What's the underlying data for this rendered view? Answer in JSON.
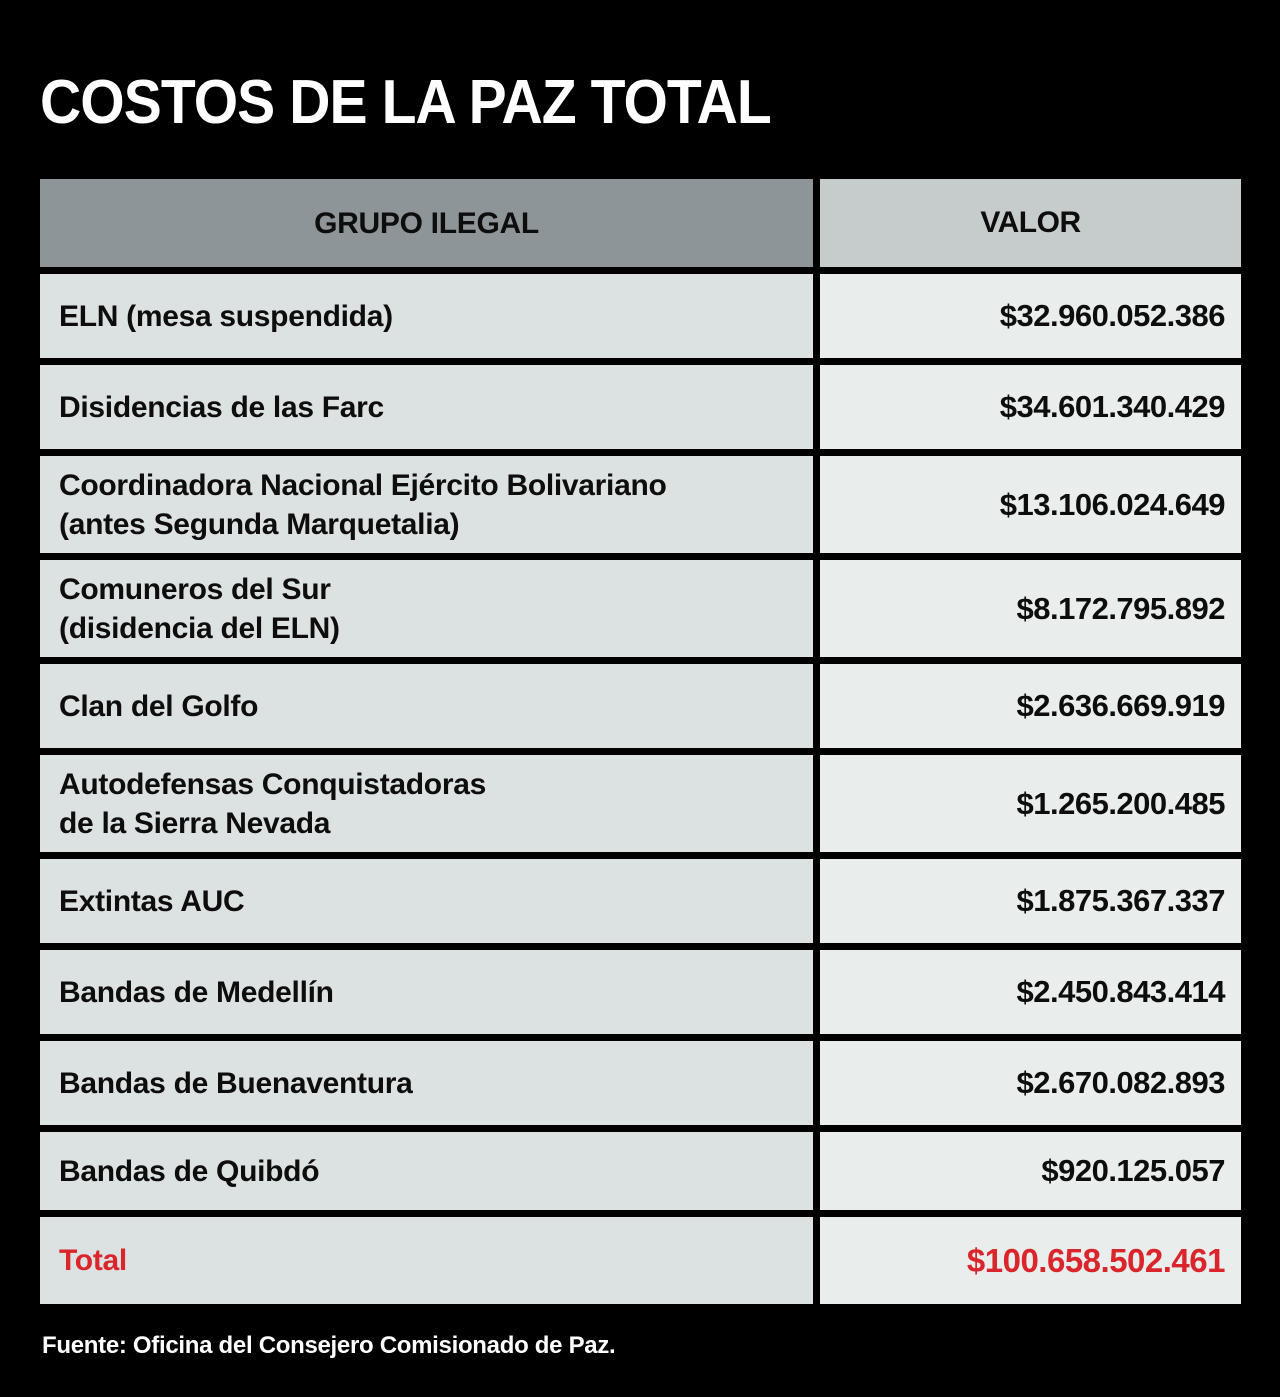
{
  "title": "COSTOS DE LA PAZ TOTAL",
  "table": {
    "headers": {
      "group": "GRUPO ILEGAL",
      "value": "VALOR"
    },
    "rows": [
      {
        "group": "ELN (mesa suspendida)",
        "value": "$32.960.052.386"
      },
      {
        "group": "Disidencias de las Farc",
        "value": "$34.601.340.429"
      },
      {
        "group": "Coordinadora Nacional Ejército Bolivariano\n(antes Segunda Marquetalia)",
        "value": "$13.106.024.649"
      },
      {
        "group": "Comuneros del Sur\n(disidencia del ELN)",
        "value": "$8.172.795.892"
      },
      {
        "group": "Clan del Golfo",
        "value": "$2.636.669.919"
      },
      {
        "group": "Autodefensas Conquistadoras\nde la Sierra Nevada",
        "value": "$1.265.200.485"
      },
      {
        "group": "Extintas AUC",
        "value": "$1.875.367.337"
      },
      {
        "group": "Bandas de Medellín",
        "value": "$2.450.843.414"
      },
      {
        "group": "Bandas de Buenaventura",
        "value": "$2.670.082.893"
      },
      {
        "group": "Bandas de Quibdó",
        "value": "$920.125.057"
      }
    ],
    "total_row": {
      "group": "Total",
      "value": "$100.658.502.461"
    }
  },
  "footer": {
    "source": "Fuente: Oficina del Consejero Comisionado de Paz."
  },
  "colors": {
    "background": "#000000",
    "title_text": "#ffffff",
    "header_group_bg": "#8d9599",
    "header_value_bg": "#c6cbcc",
    "row_group_bg": "#dce1e1",
    "row_value_bg": "#e9edec",
    "cell_text": "#0d0d0d",
    "total_accent": "#d9252b"
  },
  "chart_data": {
    "type": "table",
    "title": "COSTOS DE LA PAZ TOTAL",
    "columns": [
      "GRUPO ILEGAL",
      "VALOR"
    ],
    "categories": [
      "ELN (mesa suspendida)",
      "Disidencias de las Farc",
      "Coordinadora Nacional Ejército Bolivariano (antes Segunda Marquetalia)",
      "Comuneros del Sur (disidencia del ELN)",
      "Clan del Golfo",
      "Autodefensas Conquistadoras de la Sierra Nevada",
      "Extintas AUC",
      "Bandas de Medellín",
      "Bandas de Buenaventura",
      "Bandas de Quibdó"
    ],
    "values": [
      32960052386,
      34601340429,
      13106024649,
      8172795892,
      2636669919,
      1265200485,
      1875367337,
      2450843414,
      2670082893,
      920125057
    ],
    "total": 100658502461,
    "source": "Fuente: Oficina del Consejero Comisionado de Paz."
  }
}
